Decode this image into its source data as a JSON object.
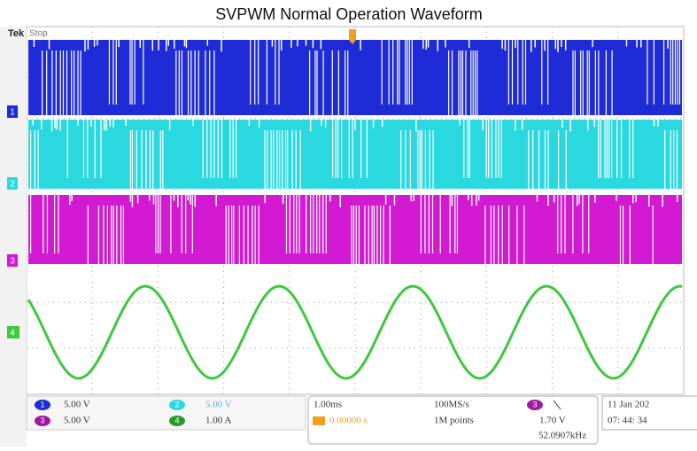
{
  "title": "SVPWM Normal Operation Waveform",
  "header": {
    "brand": "Tek",
    "status": "Stop"
  },
  "channel_markers": [
    "1",
    "2",
    "3",
    "4"
  ],
  "channels": [
    {
      "id": "1",
      "scale": "5.00 V"
    },
    {
      "id": "3",
      "scale": "5.00 V"
    },
    {
      "id": "2",
      "scale": "5.00 V"
    },
    {
      "id": "4",
      "scale": "1.00 A"
    }
  ],
  "timebase": {
    "scale": "1.00ms",
    "position": "0.00000 s",
    "sample_rate": "100MS/s",
    "record_length": "1M points"
  },
  "trigger": {
    "source": "3",
    "level": "1.70 V",
    "frequency": "52.0907kHz"
  },
  "date": "11 Jan 202",
  "time": "07: 44: 34"
}
